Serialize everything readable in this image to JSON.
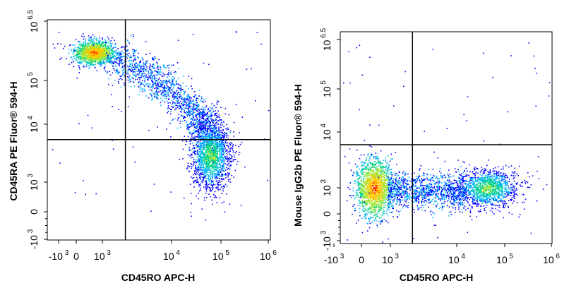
{
  "chart_data": [
    {
      "type": "scatter",
      "subtype": "flow-cytometry-density-dot-plot",
      "title": "",
      "xlabel": "CD45RO APC-H",
      "ylabel": "CD45RA PE Fluor® 594-H",
      "x_scale": "biexponential",
      "y_scale": "biexponential",
      "x_ticks": [
        {
          "base": "-10",
          "exp": "3",
          "value": -1000
        },
        {
          "base": "0",
          "exp": "",
          "value": 0
        },
        {
          "base": "10",
          "exp": "3",
          "value": 1000
        },
        {
          "base": "10",
          "exp": "4",
          "value": 10000
        },
        {
          "base": "10",
          "exp": "5",
          "value": 100000
        },
        {
          "base": "10",
          "exp": "6",
          "value": 1000000
        }
      ],
      "y_ticks": [
        {
          "base": "-10",
          "exp": "3",
          "value": -1000
        },
        {
          "base": "0",
          "exp": "",
          "value": 0
        },
        {
          "base": "10",
          "exp": "3",
          "value": 1000
        },
        {
          "base": "10",
          "exp": "4",
          "value": 10000
        },
        {
          "base": "10",
          "exp": "5",
          "value": 100000
        },
        {
          "base": "10",
          "exp": "6.5",
          "value": 3162278
        }
      ],
      "quadrant_gate": {
        "x": 2200,
        "y": 5500
      },
      "populations": [
        {
          "name": "",
          "x_center": 500,
          "y_center": 400000,
          "spread": "tight",
          "density": "very high"
        },
        {
          "name": "",
          "x_center": 25000,
          "y_center": 30000,
          "spread": "diagonal band",
          "density": "medium"
        },
        {
          "name": "",
          "x_center": 70000,
          "y_center": 2500,
          "spread": "moderate",
          "density": "high"
        }
      ],
      "density_colors": [
        "#0000ff",
        "#00b4ff",
        "#00d28c",
        "#a0e632",
        "#ffc800",
        "#ff3200"
      ],
      "grid": false
    },
    {
      "type": "scatter",
      "subtype": "flow-cytometry-density-dot-plot",
      "title": "",
      "xlabel": "CD45RO APC-H",
      "ylabel": "Mouse IgG2b PE Fluor® 594-H",
      "x_scale": "biexponential",
      "y_scale": "biexponential",
      "x_ticks": [
        {
          "base": "-10",
          "exp": "3",
          "value": -1000
        },
        {
          "base": "0",
          "exp": "",
          "value": 0
        },
        {
          "base": "10",
          "exp": "3",
          "value": 1000
        },
        {
          "base": "10",
          "exp": "4",
          "value": 10000
        },
        {
          "base": "10",
          "exp": "5",
          "value": 100000
        },
        {
          "base": "10",
          "exp": "6",
          "value": 1000000
        }
      ],
      "y_ticks": [
        {
          "base": "-10",
          "exp": "3",
          "value": -1000
        },
        {
          "base": "0",
          "exp": "",
          "value": 0
        },
        {
          "base": "10",
          "exp": "3",
          "value": 1000
        },
        {
          "base": "10",
          "exp": "4",
          "value": 10000
        },
        {
          "base": "10",
          "exp": "5",
          "value": 100000
        },
        {
          "base": "10",
          "exp": "6.5",
          "value": 3162278
        }
      ],
      "quadrant_gate": {
        "x": 2200,
        "y": 6000
      },
      "populations": [
        {
          "name": "",
          "x_center": 400,
          "y_center": 900,
          "spread": "tight",
          "density": "very high"
        },
        {
          "name": "",
          "x_center": 5000,
          "y_center": 800,
          "spread": "horizontal band",
          "density": "medium"
        },
        {
          "name": "",
          "x_center": 50000,
          "y_center": 900,
          "spread": "moderate",
          "density": "medium-high"
        }
      ],
      "density_colors": [
        "#0000ff",
        "#00b4ff",
        "#00d28c",
        "#a0e632",
        "#ffc800",
        "#ff3200"
      ],
      "grid": false
    }
  ]
}
